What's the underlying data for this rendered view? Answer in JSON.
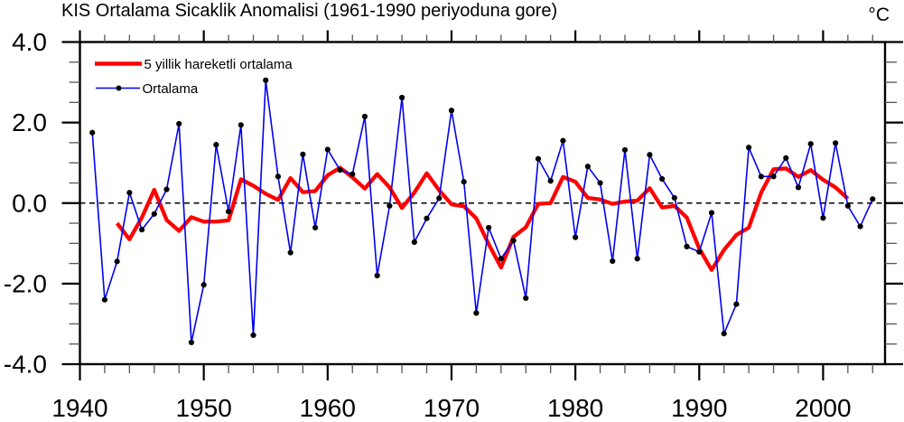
{
  "title": "KIS Ortalama Sicaklik Anomalisi (1961-1990 periyoduna gore)",
  "unit_label": "°C",
  "legend": {
    "moving_avg_label": "5 yillik hareketli ortalama",
    "series_label": "Ortalama"
  },
  "colors": {
    "series_line": "#0000f0",
    "moving_avg_line": "#ff0000",
    "marker": "#000000",
    "axis": "#000000",
    "minor_tick": "#555555",
    "background": "#ffffff"
  },
  "chart_data": {
    "type": "line",
    "title": "KIS Ortalama Sicaklik Anomalisi (1961-1990 periyoduna gore)",
    "xlabel": "",
    "ylabel": "°C",
    "xlim": [
      1940,
      2005
    ],
    "ylim": [
      -4.0,
      4.0
    ],
    "x_ticks_major": [
      1940,
      1950,
      1960,
      1970,
      1980,
      1990,
      2000
    ],
    "x_minor_step": 2,
    "y_ticks_major": [
      -4.0,
      -2.0,
      0.0,
      2.0,
      4.0
    ],
    "y_minor_step": 0.5,
    "grid": "off",
    "zero_line": "dashed",
    "legend_position": "top-left-inside",
    "series": [
      {
        "name": "Ortalama",
        "style": "line-with-markers",
        "years": [
          1941,
          1942,
          1943,
          1944,
          1945,
          1946,
          1947,
          1948,
          1949,
          1950,
          1951,
          1952,
          1953,
          1954,
          1955,
          1956,
          1957,
          1958,
          1959,
          1960,
          1961,
          1962,
          1963,
          1964,
          1965,
          1966,
          1967,
          1968,
          1969,
          1970,
          1971,
          1972,
          1973,
          1974,
          1975,
          1976,
          1977,
          1978,
          1979,
          1980,
          1981,
          1982,
          1983,
          1984,
          1985,
          1986,
          1987,
          1988,
          1989,
          1990,
          1991,
          1992,
          1993,
          1994,
          1995,
          1996,
          1997,
          1998,
          1999,
          2000,
          2001,
          2002,
          2003,
          2004
        ],
        "values": [
          1.75,
          -2.4,
          -1.45,
          0.26,
          -0.66,
          -0.27,
          0.34,
          1.97,
          -3.46,
          -2.03,
          1.45,
          -0.21,
          1.94,
          -3.28,
          3.05,
          0.66,
          -1.23,
          1.21,
          -0.61,
          1.33,
          0.82,
          0.72,
          2.15,
          -1.8,
          -0.07,
          2.62,
          -0.97,
          -0.38,
          0.12,
          2.3,
          0.53,
          -2.73,
          -0.61,
          -1.38,
          -0.93,
          -2.36,
          1.1,
          0.55,
          1.55,
          -0.85,
          0.91,
          0.5,
          -1.44,
          1.32,
          -1.38,
          1.2,
          0.6,
          0.13,
          -1.08,
          -1.21,
          -0.24,
          -3.24,
          -2.51,
          1.38,
          0.66,
          0.66,
          1.12,
          0.39,
          1.47,
          -0.37,
          1.49,
          -0.07,
          -0.58,
          0.1
        ]
      },
      {
        "name": "5 yillik hareketli ortalama",
        "style": "thick-line",
        "years": [
          1943,
          1944,
          1945,
          1946,
          1947,
          1948,
          1949,
          1950,
          1951,
          1952,
          1953,
          1954,
          1955,
          1956,
          1957,
          1958,
          1959,
          1960,
          1961,
          1962,
          1963,
          1964,
          1965,
          1966,
          1967,
          1968,
          1969,
          1970,
          1971,
          1972,
          1973,
          1974,
          1975,
          1976,
          1977,
          1978,
          1979,
          1980,
          1981,
          1982,
          1983,
          1984,
          1985,
          1986,
          1987,
          1988,
          1989,
          1990,
          1991,
          1992,
          1993,
          1994,
          1995,
          1996,
          1997,
          1998,
          1999,
          2000,
          2001,
          2002
        ],
        "values": [
          -0.5,
          -0.9,
          -0.36,
          0.33,
          -0.42,
          -0.69,
          -0.35,
          -0.46,
          -0.46,
          -0.43,
          0.59,
          0.43,
          0.23,
          0.08,
          0.62,
          0.27,
          0.3,
          0.69,
          0.88,
          0.64,
          0.36,
          0.72,
          0.39,
          -0.12,
          0.26,
          0.74,
          0.32,
          -0.03,
          -0.08,
          -0.38,
          -1.02,
          -1.6,
          -0.84,
          -0.6,
          -0.02,
          0.0,
          0.65,
          0.53,
          0.13,
          0.09,
          -0.02,
          0.04,
          0.06,
          0.37,
          -0.11,
          -0.07,
          -0.36,
          -1.13,
          -1.66,
          -1.16,
          -0.79,
          -0.61,
          0.26,
          0.84,
          0.86,
          0.65,
          0.82,
          0.58,
          0.39,
          0.11
        ]
      }
    ]
  }
}
